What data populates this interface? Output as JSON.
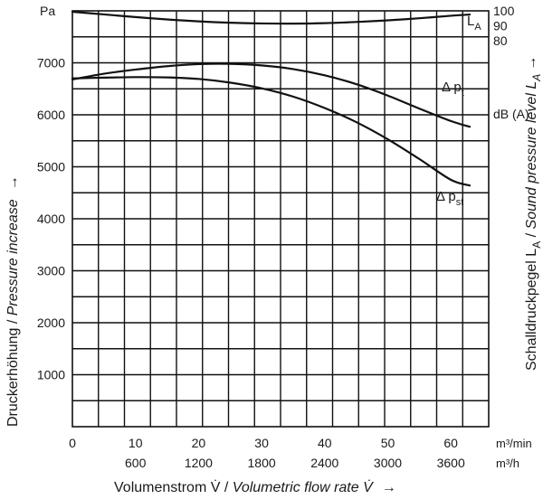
{
  "chart_data": {
    "type": "line",
    "y_unit": "Pa",
    "ylabel": {
      "de": "Druckerhöhung",
      "sep": " / ",
      "en": "Pressure increase",
      "arrow": "→"
    },
    "y2label": {
      "de": "Schalldruckpegel L",
      "sub1": "A",
      "mid": " / ",
      "en": "Sound pressure level L",
      "sub2": "A",
      "arrow": "→"
    },
    "y2_unit": "dB (A)",
    "xlabel": {
      "de": "Volumenstrom V̇",
      "sep": " / ",
      "en": "Volumetric flow rate V̇",
      "arrow": "→"
    },
    "x_unit_primary": "m³/min",
    "x_unit_secondary": "m³/h",
    "x_ticks_primary": [
      "0",
      "10",
      "20",
      "30",
      "40",
      "50",
      "60"
    ],
    "x_ticks_secondary": [
      "600",
      "1200",
      "1800",
      "2400",
      "3000",
      "3600"
    ],
    "y_ticks": [
      "1000",
      "2000",
      "3000",
      "4000",
      "5000",
      "6000",
      "7000"
    ],
    "y2_ticks": [
      "80",
      "90",
      "100"
    ],
    "xlim": [
      0,
      66
    ],
    "ylim": [
      0,
      8000
    ],
    "y2lim": [
      -180,
      100
    ],
    "series": [
      {
        "name": "Δ p_t",
        "label": {
          "main": "Δ p",
          "sub": "t"
        },
        "axis": "left",
        "x": [
          0,
          5,
          10,
          15,
          20,
          25,
          30,
          35,
          40,
          45,
          50,
          55,
          60,
          63
        ],
        "y": [
          6680,
          6790,
          6870,
          6935,
          6975,
          6980,
          6950,
          6880,
          6760,
          6590,
          6370,
          6120,
          5880,
          5770
        ]
      },
      {
        "name": "Δ p_st",
        "label": {
          "main": "Δ p",
          "sub": "st"
        },
        "axis": "left",
        "x": [
          0,
          5,
          10,
          15,
          20,
          25,
          30,
          35,
          40,
          45,
          50,
          55,
          60,
          63
        ],
        "y": [
          6700,
          6715,
          6725,
          6720,
          6690,
          6620,
          6510,
          6350,
          6130,
          5860,
          5530,
          5150,
          4750,
          4640
        ]
      },
      {
        "name": "L_A",
        "label": {
          "main": "L",
          "sub": "A"
        },
        "axis": "right",
        "x": [
          0,
          5,
          10,
          15,
          20,
          25,
          30,
          35,
          40,
          45,
          50,
          55,
          60,
          63
        ],
        "y": [
          99.4,
          97.6,
          95.8,
          94.2,
          92.9,
          92.0,
          91.5,
          91.4,
          91.7,
          92.5,
          93.6,
          95.0,
          96.7,
          97.5
        ]
      }
    ],
    "grid": true
  }
}
